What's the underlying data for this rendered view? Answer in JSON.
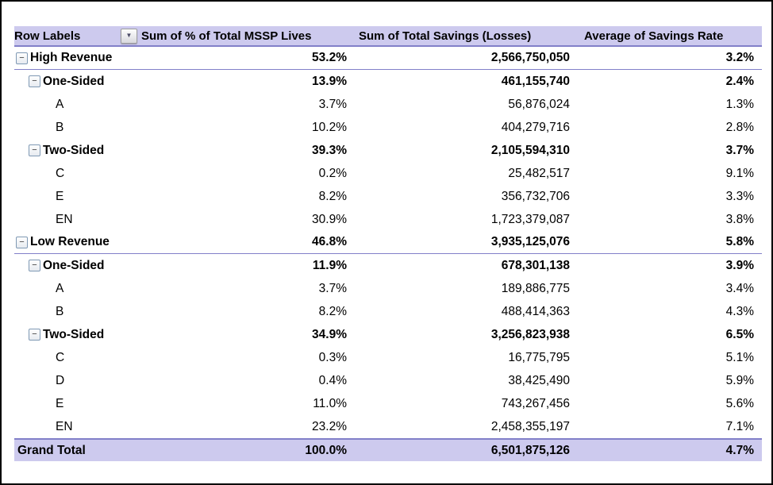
{
  "colors": {
    "header_bg": "#cdcaee",
    "accent_line": "#8280c9",
    "frame_border": "#000000",
    "text": "#000000"
  },
  "icons": {
    "collapse_minus": "−",
    "filter_dropdown": "▼"
  },
  "table": {
    "header": {
      "row_labels": "Row Labels",
      "col_lives": "Sum of % of Total MSSP Lives",
      "col_savings": "Sum of Total Savings (Losses)",
      "col_rate": "Average of Savings Rate"
    },
    "rows": [
      {
        "label": "High Revenue",
        "level": 0,
        "bold": true,
        "collapsible": true,
        "group_end": true,
        "grand": false,
        "lives": "53.2%",
        "savings": "2,566,750,050",
        "rate": "3.2%"
      },
      {
        "label": "One-Sided",
        "level": 1,
        "bold": true,
        "collapsible": true,
        "group_end": false,
        "grand": false,
        "lives": "13.9%",
        "savings": "461,155,740",
        "rate": "2.4%"
      },
      {
        "label": "A",
        "level": 2,
        "bold": false,
        "collapsible": false,
        "group_end": false,
        "grand": false,
        "lives": "3.7%",
        "savings": "56,876,024",
        "rate": "1.3%"
      },
      {
        "label": "B",
        "level": 2,
        "bold": false,
        "collapsible": false,
        "group_end": false,
        "grand": false,
        "lives": "10.2%",
        "savings": "404,279,716",
        "rate": "2.8%"
      },
      {
        "label": "Two-Sided",
        "level": 1,
        "bold": true,
        "collapsible": true,
        "group_end": false,
        "grand": false,
        "lives": "39.3%",
        "savings": "2,105,594,310",
        "rate": "3.7%"
      },
      {
        "label": "C",
        "level": 2,
        "bold": false,
        "collapsible": false,
        "group_end": false,
        "grand": false,
        "lives": "0.2%",
        "savings": "25,482,517",
        "rate": "9.1%"
      },
      {
        "label": "E",
        "level": 2,
        "bold": false,
        "collapsible": false,
        "group_end": false,
        "grand": false,
        "lives": "8.2%",
        "savings": "356,732,706",
        "rate": "3.3%"
      },
      {
        "label": "EN",
        "level": 2,
        "bold": false,
        "collapsible": false,
        "group_end": false,
        "grand": false,
        "lives": "30.9%",
        "savings": "1,723,379,087",
        "rate": "3.8%"
      },
      {
        "label": "Low Revenue",
        "level": 0,
        "bold": true,
        "collapsible": true,
        "group_end": true,
        "grand": false,
        "lives": "46.8%",
        "savings": "3,935,125,076",
        "rate": "5.8%"
      },
      {
        "label": "One-Sided",
        "level": 1,
        "bold": true,
        "collapsible": true,
        "group_end": false,
        "grand": false,
        "lives": "11.9%",
        "savings": "678,301,138",
        "rate": "3.9%"
      },
      {
        "label": "A",
        "level": 2,
        "bold": false,
        "collapsible": false,
        "group_end": false,
        "grand": false,
        "lives": "3.7%",
        "savings": "189,886,775",
        "rate": "3.4%"
      },
      {
        "label": "B",
        "level": 2,
        "bold": false,
        "collapsible": false,
        "group_end": false,
        "grand": false,
        "lives": "8.2%",
        "savings": "488,414,363",
        "rate": "4.3%"
      },
      {
        "label": "Two-Sided",
        "level": 1,
        "bold": true,
        "collapsible": true,
        "group_end": false,
        "grand": false,
        "lives": "34.9%",
        "savings": "3,256,823,938",
        "rate": "6.5%"
      },
      {
        "label": "C",
        "level": 2,
        "bold": false,
        "collapsible": false,
        "group_end": false,
        "grand": false,
        "lives": "0.3%",
        "savings": "16,775,795",
        "rate": "5.1%"
      },
      {
        "label": "D",
        "level": 2,
        "bold": false,
        "collapsible": false,
        "group_end": false,
        "grand": false,
        "lives": "0.4%",
        "savings": "38,425,490",
        "rate": "5.9%"
      },
      {
        "label": "E",
        "level": 2,
        "bold": false,
        "collapsible": false,
        "group_end": false,
        "grand": false,
        "lives": "11.0%",
        "savings": "743,267,456",
        "rate": "5.6%"
      },
      {
        "label": "EN",
        "level": 2,
        "bold": false,
        "collapsible": false,
        "group_end": false,
        "grand": false,
        "lives": "23.2%",
        "savings": "2,458,355,197",
        "rate": "7.1%"
      },
      {
        "label": "Grand Total",
        "level": 0,
        "bold": true,
        "collapsible": false,
        "group_end": false,
        "grand": true,
        "lives": "100.0%",
        "savings": "6,501,875,126",
        "rate": "4.7%"
      }
    ]
  }
}
